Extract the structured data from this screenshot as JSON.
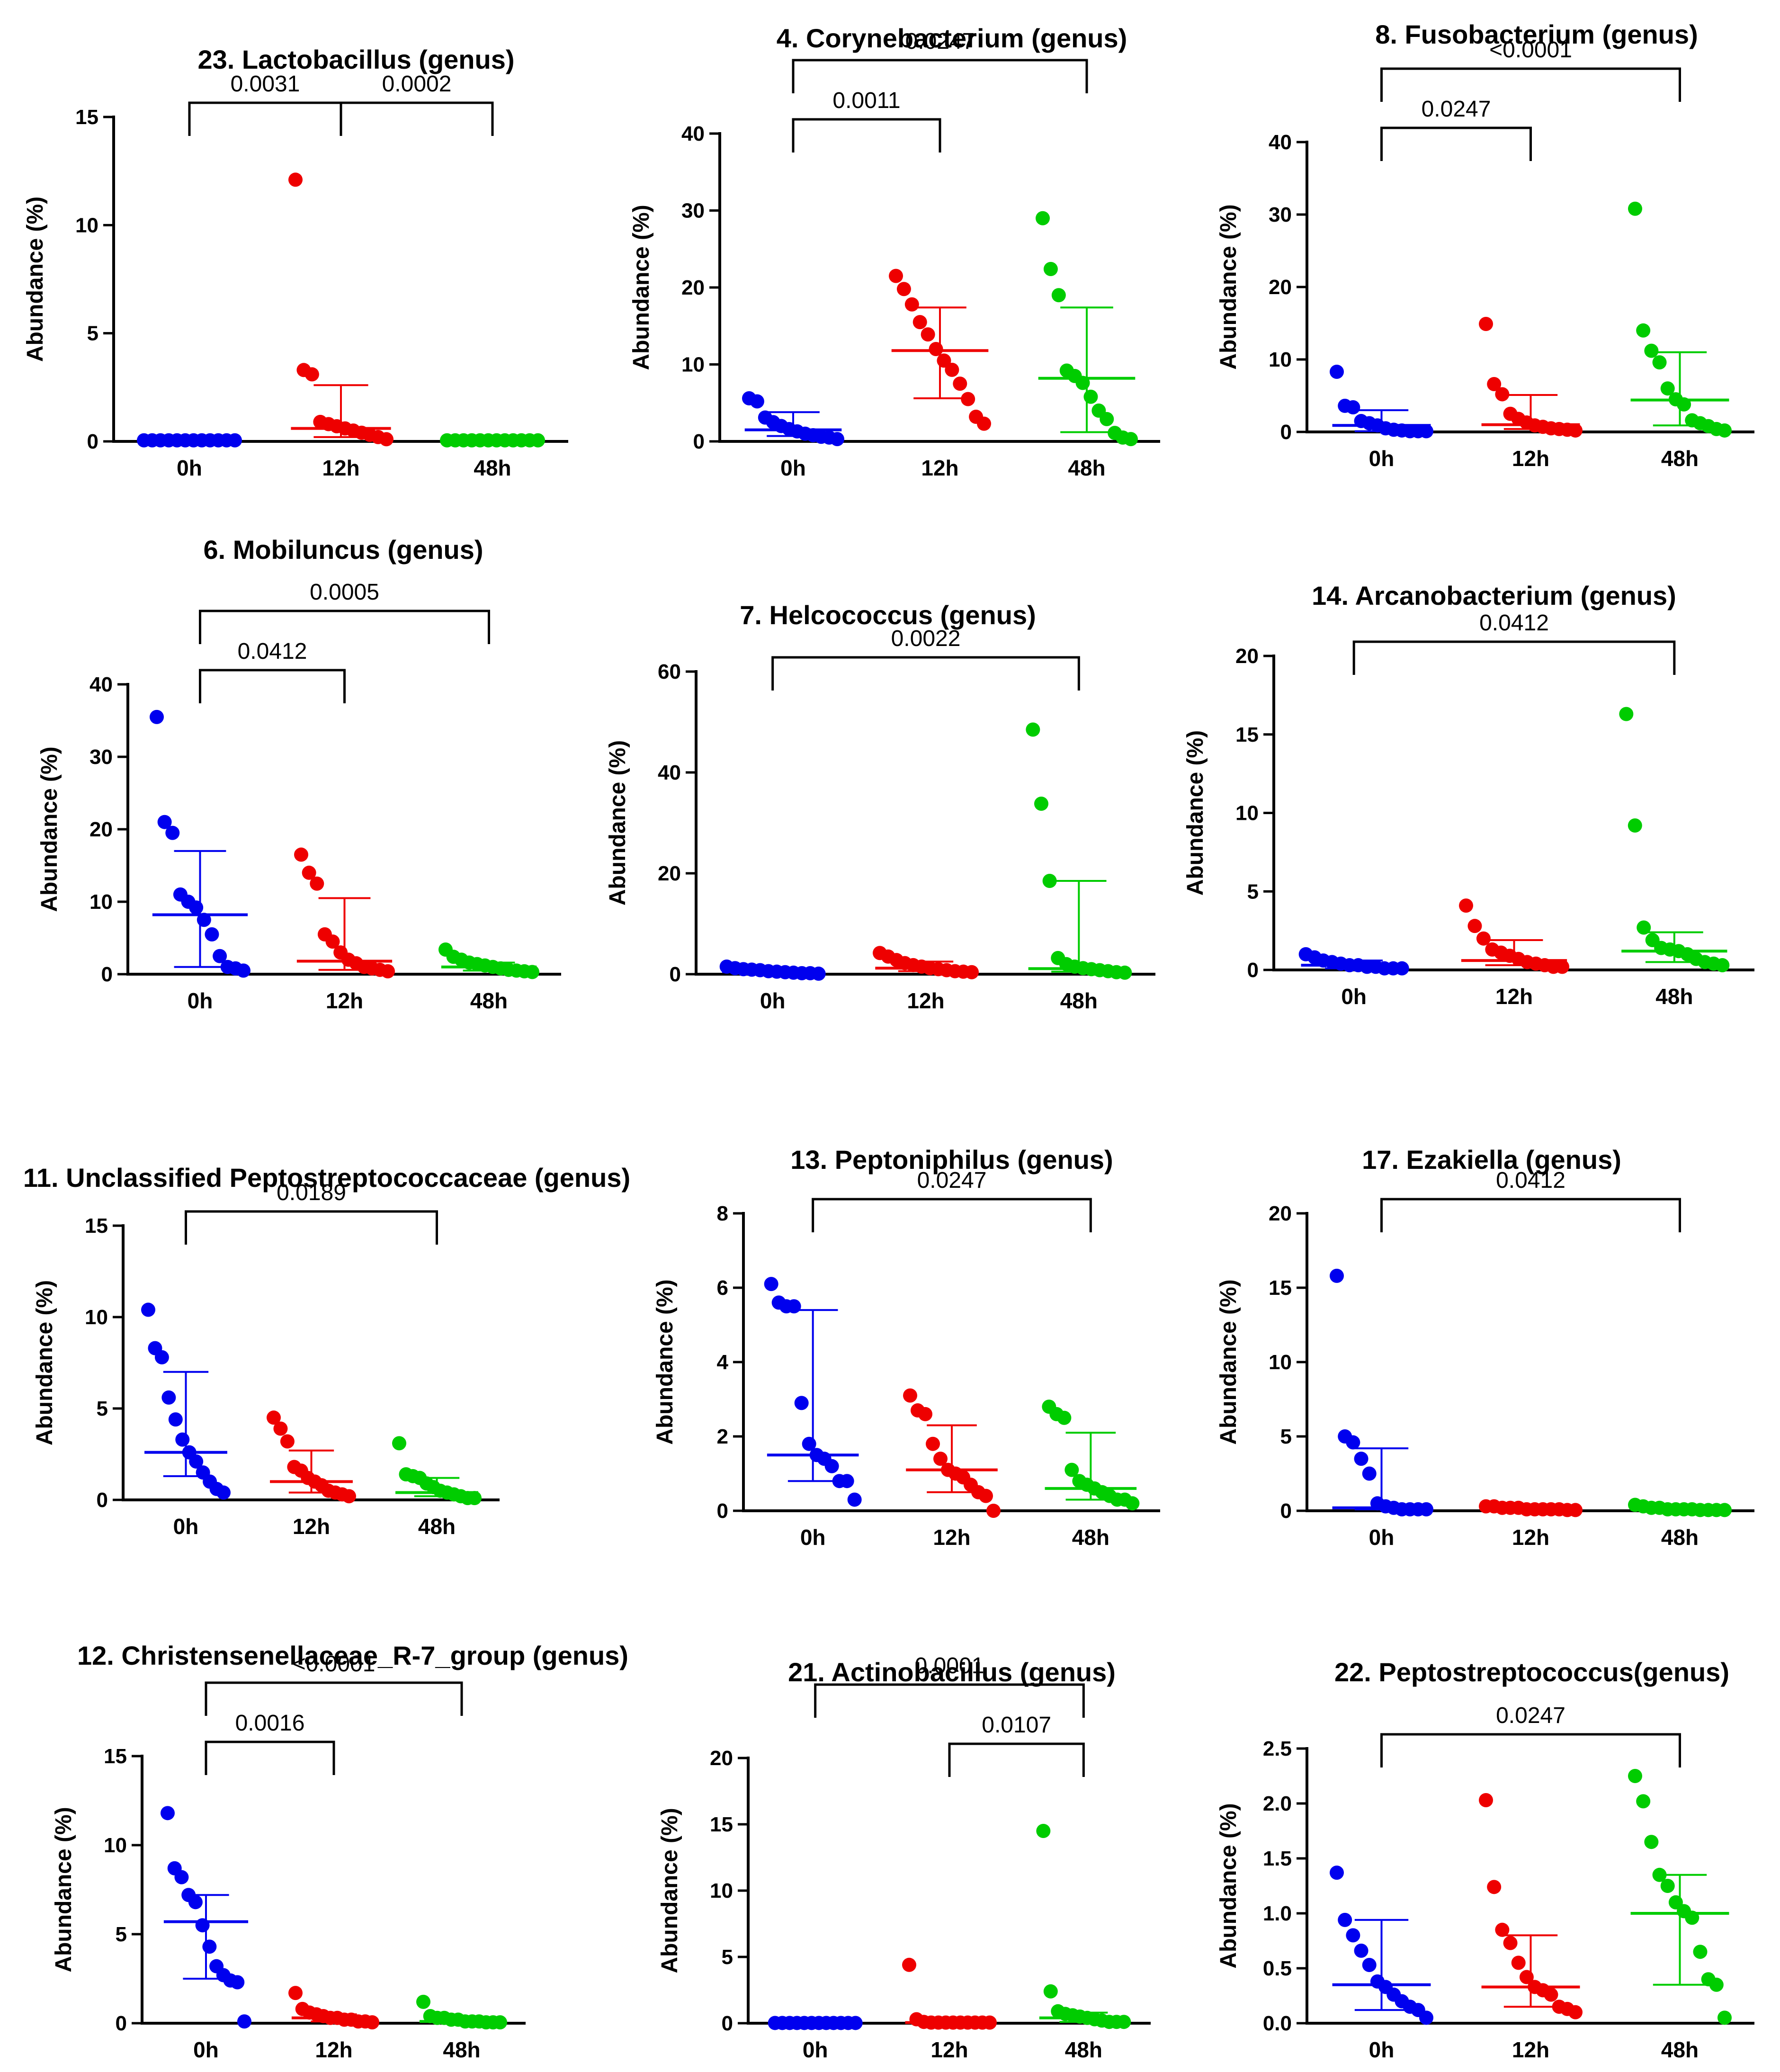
{
  "colors": {
    "0h": "#0000ee",
    "12h": "#ee0000",
    "48h": "#00cc00"
  },
  "chart_data": [
    {
      "type": "scatter",
      "title": "23. Lactobacillus (genus)",
      "ylabel": "Abundance (%)",
      "categories": [
        "0h",
        "12h",
        "48h"
      ],
      "ylim": [
        0,
        15
      ],
      "yticks": [
        "0",
        "5",
        "10",
        "15"
      ],
      "series": [
        {
          "name": "0h",
          "values": [
            0.05,
            0.05,
            0.05,
            0.05,
            0.05,
            0.05,
            0.05,
            0.05,
            0.05,
            0.05,
            0.05,
            0.05
          ],
          "median": 0.05,
          "q1": 0.05,
          "q3": 0.05
        },
        {
          "name": "12h",
          "values": [
            12.1,
            3.3,
            3.1,
            0.9,
            0.8,
            0.7,
            0.6,
            0.5,
            0.4,
            0.3,
            0.2,
            0.1
          ],
          "median": 0.6,
          "q1": 0.2,
          "q3": 2.6
        },
        {
          "name": "48h",
          "values": [
            0.05,
            0.05,
            0.05,
            0.05,
            0.05,
            0.05,
            0.05,
            0.05,
            0.05,
            0.05,
            0.05,
            0.05
          ],
          "median": 0.05,
          "q1": 0.05,
          "q3": 0.05
        }
      ],
      "comparisons": [
        {
          "from": "0h",
          "to": "12h",
          "p": "0.0031",
          "level": 1
        },
        {
          "from": "12h",
          "to": "48h",
          "p": "0.0002",
          "level": 1
        }
      ]
    },
    {
      "type": "scatter",
      "title": "4. Corynebacterium (genus)",
      "ylabel": "Abundance (%)",
      "categories": [
        "0h",
        "12h",
        "48h"
      ],
      "ylim": [
        0,
        40
      ],
      "yticks": [
        "0",
        "10",
        "20",
        "30",
        "40"
      ],
      "series": [
        {
          "name": "0h",
          "values": [
            5.6,
            5.2,
            3.1,
            2.5,
            2.0,
            1.6,
            1.3,
            1.0,
            0.8,
            0.6,
            0.5,
            0.3
          ],
          "median": 1.5,
          "q1": 0.7,
          "q3": 3.8
        },
        {
          "name": "12h",
          "values": [
            21.5,
            19.8,
            17.8,
            15.5,
            13.9,
            12.0,
            10.5,
            9.3,
            7.5,
            5.5,
            3.2,
            2.3
          ],
          "median": 11.8,
          "q1": 5.6,
          "q3": 17.4
        },
        {
          "name": "48h",
          "values": [
            29.0,
            22.4,
            19.0,
            9.2,
            8.5,
            7.6,
            5.8,
            4.0,
            2.9,
            1.1,
            0.5,
            0.3
          ],
          "median": 8.2,
          "q1": 1.2,
          "q3": 17.4
        }
      ],
      "comparisons": [
        {
          "from": "0h",
          "to": "12h",
          "p": "0.0011",
          "level": 1
        },
        {
          "from": "0h",
          "to": "48h",
          "p": "0.0247",
          "level": 2
        }
      ]
    },
    {
      "type": "scatter",
      "title": "8. Fusobacterium   (genus)",
      "ylabel": "Abundance (%)",
      "categories": [
        "0h",
        "12h",
        "48h"
      ],
      "ylim": [
        0,
        40
      ],
      "yticks": [
        "0",
        "10",
        "20",
        "30",
        "40"
      ],
      "series": [
        {
          "name": "0h",
          "values": [
            8.3,
            3.6,
            3.4,
            1.5,
            1.2,
            0.9,
            0.5,
            0.3,
            0.2,
            0.1,
            0.1,
            0.1
          ],
          "median": 0.9,
          "q1": 0.1,
          "q3": 3.0
        },
        {
          "name": "12h",
          "values": [
            14.9,
            6.6,
            5.2,
            2.5,
            1.8,
            1.3,
            0.9,
            0.7,
            0.5,
            0.4,
            0.3,
            0.2
          ],
          "median": 1.0,
          "q1": 0.4,
          "q3": 5.1
        },
        {
          "name": "48h",
          "values": [
            30.8,
            14.0,
            11.2,
            9.6,
            6.0,
            4.5,
            3.8,
            1.6,
            1.2,
            0.8,
            0.4,
            0.2
          ],
          "median": 4.4,
          "q1": 0.9,
          "q3": 11.0
        }
      ],
      "comparisons": [
        {
          "from": "0h",
          "to": "12h",
          "p": "0.0247",
          "level": 1
        },
        {
          "from": "0h",
          "to": "48h",
          "p": "<0.0001",
          "level": 2
        }
      ]
    },
    {
      "type": "scatter",
      "title": "6. Mobiluncus  (genus)",
      "ylabel": "Abundance (%)",
      "categories": [
        "0h",
        "12h",
        "48h"
      ],
      "ylim": [
        0,
        40
      ],
      "yticks": [
        "0",
        "10",
        "20",
        "30",
        "40"
      ],
      "series": [
        {
          "name": "0h",
          "values": [
            35.5,
            21.0,
            19.5,
            11.0,
            10.0,
            9.2,
            7.5,
            5.5,
            2.5,
            1.0,
            0.8,
            0.5
          ],
          "median": 8.2,
          "q1": 1.0,
          "q3": 17.0
        },
        {
          "name": "12h",
          "values": [
            16.5,
            14.0,
            12.5,
            5.5,
            4.5,
            3.0,
            2.0,
            1.5,
            1.0,
            0.8,
            0.6,
            0.4
          ],
          "median": 1.8,
          "q1": 0.6,
          "q3": 10.5
        },
        {
          "name": "48h",
          "values": [
            3.4,
            2.4,
            2.0,
            1.6,
            1.4,
            1.2,
            1.0,
            0.8,
            0.6,
            0.5,
            0.4,
            0.3
          ],
          "median": 1.0,
          "q1": 0.5,
          "q3": 1.6
        }
      ],
      "comparisons": [
        {
          "from": "0h",
          "to": "12h",
          "p": "0.0412",
          "level": 1
        },
        {
          "from": "0h",
          "to": "48h",
          "p": "0.0005",
          "level": 2
        }
      ]
    },
    {
      "type": "scatter",
      "title": "7. Helcococcus   (genus)",
      "ylabel": "Abundance (%)",
      "categories": [
        "0h",
        "12h",
        "48h"
      ],
      "ylim": [
        0,
        60
      ],
      "yticks": [
        "0",
        "20",
        "40",
        "60"
      ],
      "series": [
        {
          "name": "0h",
          "values": [
            1.5,
            1.2,
            1.0,
            0.9,
            0.8,
            0.6,
            0.5,
            0.4,
            0.3,
            0.2,
            0.2,
            0.1
          ],
          "median": 0.5,
          "q1": 0.2,
          "q3": 1.0
        },
        {
          "name": "12h",
          "values": [
            4.2,
            3.5,
            2.8,
            2.2,
            1.8,
            1.5,
            1.2,
            1.0,
            0.8,
            0.6,
            0.5,
            0.4
          ],
          "median": 1.2,
          "q1": 0.6,
          "q3": 2.5
        },
        {
          "name": "48h",
          "values": [
            48.5,
            33.8,
            18.5,
            3.2,
            2.0,
            1.5,
            1.2,
            1.0,
            0.8,
            0.6,
            0.4,
            0.3
          ],
          "median": 1.1,
          "q1": 0.5,
          "q3": 18.5
        }
      ],
      "comparisons": [
        {
          "from": "0h",
          "to": "48h",
          "p": "0.0022",
          "level": 1
        }
      ]
    },
    {
      "type": "scatter",
      "title": "14. Arcanobacterium   (genus)",
      "ylabel": "Abundance (%)",
      "categories": [
        "0h",
        "12h",
        "48h"
      ],
      "ylim": [
        0,
        20
      ],
      "yticks": [
        "0",
        "5",
        "10",
        "15",
        "20"
      ],
      "series": [
        {
          "name": "0h",
          "values": [
            1.0,
            0.8,
            0.6,
            0.5,
            0.4,
            0.3,
            0.3,
            0.2,
            0.2,
            0.1,
            0.1,
            0.1
          ],
          "median": 0.3,
          "q1": 0.1,
          "q3": 0.6
        },
        {
          "name": "12h",
          "values": [
            4.1,
            2.8,
            2.0,
            1.3,
            1.1,
            0.9,
            0.7,
            0.5,
            0.4,
            0.3,
            0.2,
            0.2
          ],
          "median": 0.6,
          "q1": 0.3,
          "q3": 1.9
        },
        {
          "name": "48h",
          "values": [
            16.3,
            9.2,
            2.7,
            1.9,
            1.4,
            1.3,
            1.2,
            1.0,
            0.7,
            0.5,
            0.4,
            0.3
          ],
          "median": 1.2,
          "q1": 0.5,
          "q3": 2.4
        }
      ],
      "comparisons": [
        {
          "from": "0h",
          "to": "48h",
          "p": "0.0412",
          "level": 1
        }
      ]
    },
    {
      "type": "scatter",
      "title": "11. Unclassified Peptostreptococcaceae   (genus)",
      "ylabel": "Abundance (%)",
      "categories": [
        "0h",
        "12h",
        "48h"
      ],
      "ylim": [
        0,
        15
      ],
      "yticks": [
        "0",
        "5",
        "10",
        "15"
      ],
      "series": [
        {
          "name": "0h",
          "values": [
            10.4,
            8.3,
            7.8,
            5.6,
            4.4,
            3.3,
            2.6,
            2.1,
            1.5,
            1.0,
            0.6,
            0.4
          ],
          "median": 2.6,
          "q1": 1.3,
          "q3": 7.0
        },
        {
          "name": "12h",
          "values": [
            4.5,
            3.9,
            3.2,
            1.8,
            1.6,
            1.2,
            1.0,
            0.8,
            0.5,
            0.4,
            0.3,
            0.2
          ],
          "median": 1.0,
          "q1": 0.4,
          "q3": 2.7
        },
        {
          "name": "48h",
          "values": [
            3.1,
            1.4,
            1.3,
            1.2,
            0.9,
            0.7,
            0.5,
            0.4,
            0.3,
            0.2,
            0.1,
            0.1
          ],
          "median": 0.4,
          "q1": 0.2,
          "q3": 1.2
        }
      ],
      "comparisons": [
        {
          "from": "0h",
          "to": "48h",
          "p": "0.0189",
          "level": 1
        }
      ]
    },
    {
      "type": "scatter",
      "title": "13. Peptoniphilus   (genus)",
      "ylabel": "Abundance (%)",
      "categories": [
        "0h",
        "12h",
        "48h"
      ],
      "ylim": [
        0,
        8
      ],
      "yticks": [
        "0",
        "2",
        "4",
        "6",
        "8"
      ],
      "series": [
        {
          "name": "0h",
          "values": [
            6.1,
            5.6,
            5.5,
            5.5,
            2.9,
            1.8,
            1.5,
            1.4,
            1.2,
            0.8,
            0.8,
            0.3
          ],
          "median": 1.5,
          "q1": 0.8,
          "q3": 5.4
        },
        {
          "name": "12h",
          "values": [
            3.1,
            2.7,
            2.6,
            1.8,
            1.4,
            1.1,
            1.0,
            0.9,
            0.7,
            0.5,
            0.4,
            0.0
          ],
          "median": 1.1,
          "q1": 0.5,
          "q3": 2.3
        },
        {
          "name": "48h",
          "values": [
            2.8,
            2.6,
            2.5,
            1.1,
            0.8,
            0.7,
            0.6,
            0.5,
            0.4,
            0.3,
            0.3,
            0.2
          ],
          "median": 0.6,
          "q1": 0.3,
          "q3": 2.1
        }
      ],
      "comparisons": [
        {
          "from": "0h",
          "to": "48h",
          "p": "0.0247",
          "level": 1
        }
      ]
    },
    {
      "type": "scatter",
      "title": "17. Ezakiella  (genus)",
      "ylabel": "Abundance (%)",
      "categories": [
        "0h",
        "12h",
        "48h"
      ],
      "ylim": [
        0,
        20
      ],
      "yticks": [
        "0",
        "5",
        "10",
        "15",
        "20"
      ],
      "series": [
        {
          "name": "0h",
          "values": [
            15.8,
            5.0,
            4.6,
            3.5,
            2.5,
            0.5,
            0.3,
            0.2,
            0.1,
            0.1,
            0.1,
            0.1
          ],
          "median": 0.2,
          "q1": 0.1,
          "q3": 4.2
        },
        {
          "name": "12h",
          "values": [
            0.3,
            0.3,
            0.2,
            0.2,
            0.2,
            0.1,
            0.1,
            0.1,
            0.1,
            0.1,
            0.05,
            0.05
          ],
          "median": 0.1,
          "q1": 0.05,
          "q3": 0.2
        },
        {
          "name": "48h",
          "values": [
            0.4,
            0.3,
            0.2,
            0.2,
            0.1,
            0.1,
            0.1,
            0.1,
            0.05,
            0.05,
            0.05,
            0.05
          ],
          "median": 0.1,
          "q1": 0.05,
          "q3": 0.2
        }
      ],
      "comparisons": [
        {
          "from": "0h",
          "to": "48h",
          "p": "0.0412",
          "level": 1
        }
      ]
    },
    {
      "type": "scatter",
      "title": "12. Christensenellaceae_R-7_group   (genus)",
      "ylabel": "Abundance (%)",
      "categories": [
        "0h",
        "12h",
        "48h"
      ],
      "ylim": [
        0,
        15
      ],
      "yticks": [
        "0",
        "5",
        "10",
        "15"
      ],
      "series": [
        {
          "name": "0h",
          "values": [
            11.8,
            8.7,
            8.2,
            7.2,
            6.8,
            5.5,
            4.3,
            3.2,
            2.7,
            2.4,
            2.3,
            0.1
          ],
          "median": 5.7,
          "q1": 2.5,
          "q3": 7.2
        },
        {
          "name": "12h",
          "values": [
            1.7,
            0.8,
            0.6,
            0.5,
            0.4,
            0.3,
            0.3,
            0.2,
            0.2,
            0.1,
            0.1,
            0.05
          ],
          "median": 0.3,
          "q1": 0.1,
          "q3": 0.5
        },
        {
          "name": "48h",
          "values": [
            1.2,
            0.4,
            0.3,
            0.3,
            0.2,
            0.2,
            0.1,
            0.1,
            0.1,
            0.05,
            0.05,
            0.05
          ],
          "median": 0.1,
          "q1": 0.05,
          "q3": 0.3
        }
      ],
      "comparisons": [
        {
          "from": "0h",
          "to": "12h",
          "p": "0.0016",
          "level": 1
        },
        {
          "from": "0h",
          "to": "48h",
          "p": "<0.0001",
          "level": 2
        }
      ]
    },
    {
      "type": "scatter",
      "title": "21. Actinobacillus (genus)",
      "ylabel": "Abundance (%)",
      "categories": [
        "0h",
        "12h",
        "48h"
      ],
      "ylim": [
        0,
        20
      ],
      "yticks": [
        "0",
        "5",
        "10",
        "15",
        "20"
      ],
      "series": [
        {
          "name": "0h",
          "values": [
            0.02,
            0.02,
            0.02,
            0.02,
            0.02,
            0.02,
            0.02,
            0.02,
            0.02,
            0.02,
            0.02,
            0.02
          ],
          "median": 0.02,
          "q1": 0.02,
          "q3": 0.02
        },
        {
          "name": "12h",
          "values": [
            4.4,
            0.3,
            0.1,
            0.05,
            0.05,
            0.05,
            0.05,
            0.05,
            0.05,
            0.05,
            0.05,
            0.05
          ],
          "median": 0.05,
          "q1": 0.05,
          "q3": 0.1
        },
        {
          "name": "48h",
          "values": [
            14.5,
            2.4,
            0.9,
            0.7,
            0.6,
            0.5,
            0.4,
            0.3,
            0.2,
            0.1,
            0.1,
            0.1
          ],
          "median": 0.4,
          "q1": 0.1,
          "q3": 0.8
        }
      ],
      "comparisons": [
        {
          "from": "12h",
          "to": "48h",
          "p": "0.0107",
          "level": 1
        },
        {
          "from": "0h",
          "to": "48h",
          "p": "0.0001",
          "level": 2
        }
      ]
    },
    {
      "type": "scatter",
      "title": "22. Peptostreptococcus(genus)",
      "ylabel": "Abundance (%)",
      "categories": [
        "0h",
        "12h",
        "48h"
      ],
      "ylim": [
        0,
        2.5
      ],
      "yticks": [
        "0.0",
        "0.5",
        "1.0",
        "1.5",
        "2.0",
        "2.5"
      ],
      "series": [
        {
          "name": "0h",
          "values": [
            1.37,
            0.94,
            0.8,
            0.66,
            0.53,
            0.38,
            0.33,
            0.26,
            0.2,
            0.15,
            0.12,
            0.05
          ],
          "median": 0.35,
          "q1": 0.12,
          "q3": 0.94
        },
        {
          "name": "12h",
          "values": [
            2.03,
            1.24,
            0.85,
            0.73,
            0.55,
            0.42,
            0.33,
            0.3,
            0.26,
            0.15,
            0.13,
            0.1
          ],
          "median": 0.33,
          "q1": 0.15,
          "q3": 0.8
        },
        {
          "name": "48h",
          "values": [
            2.25,
            2.02,
            1.65,
            1.35,
            1.25,
            1.1,
            1.02,
            0.96,
            0.65,
            0.4,
            0.35,
            0.05
          ],
          "median": 1.0,
          "q1": 0.35,
          "q3": 1.35
        }
      ],
      "comparisons": [
        {
          "from": "0h",
          "to": "48h",
          "p": "0.0247",
          "level": 1
        }
      ]
    }
  ]
}
